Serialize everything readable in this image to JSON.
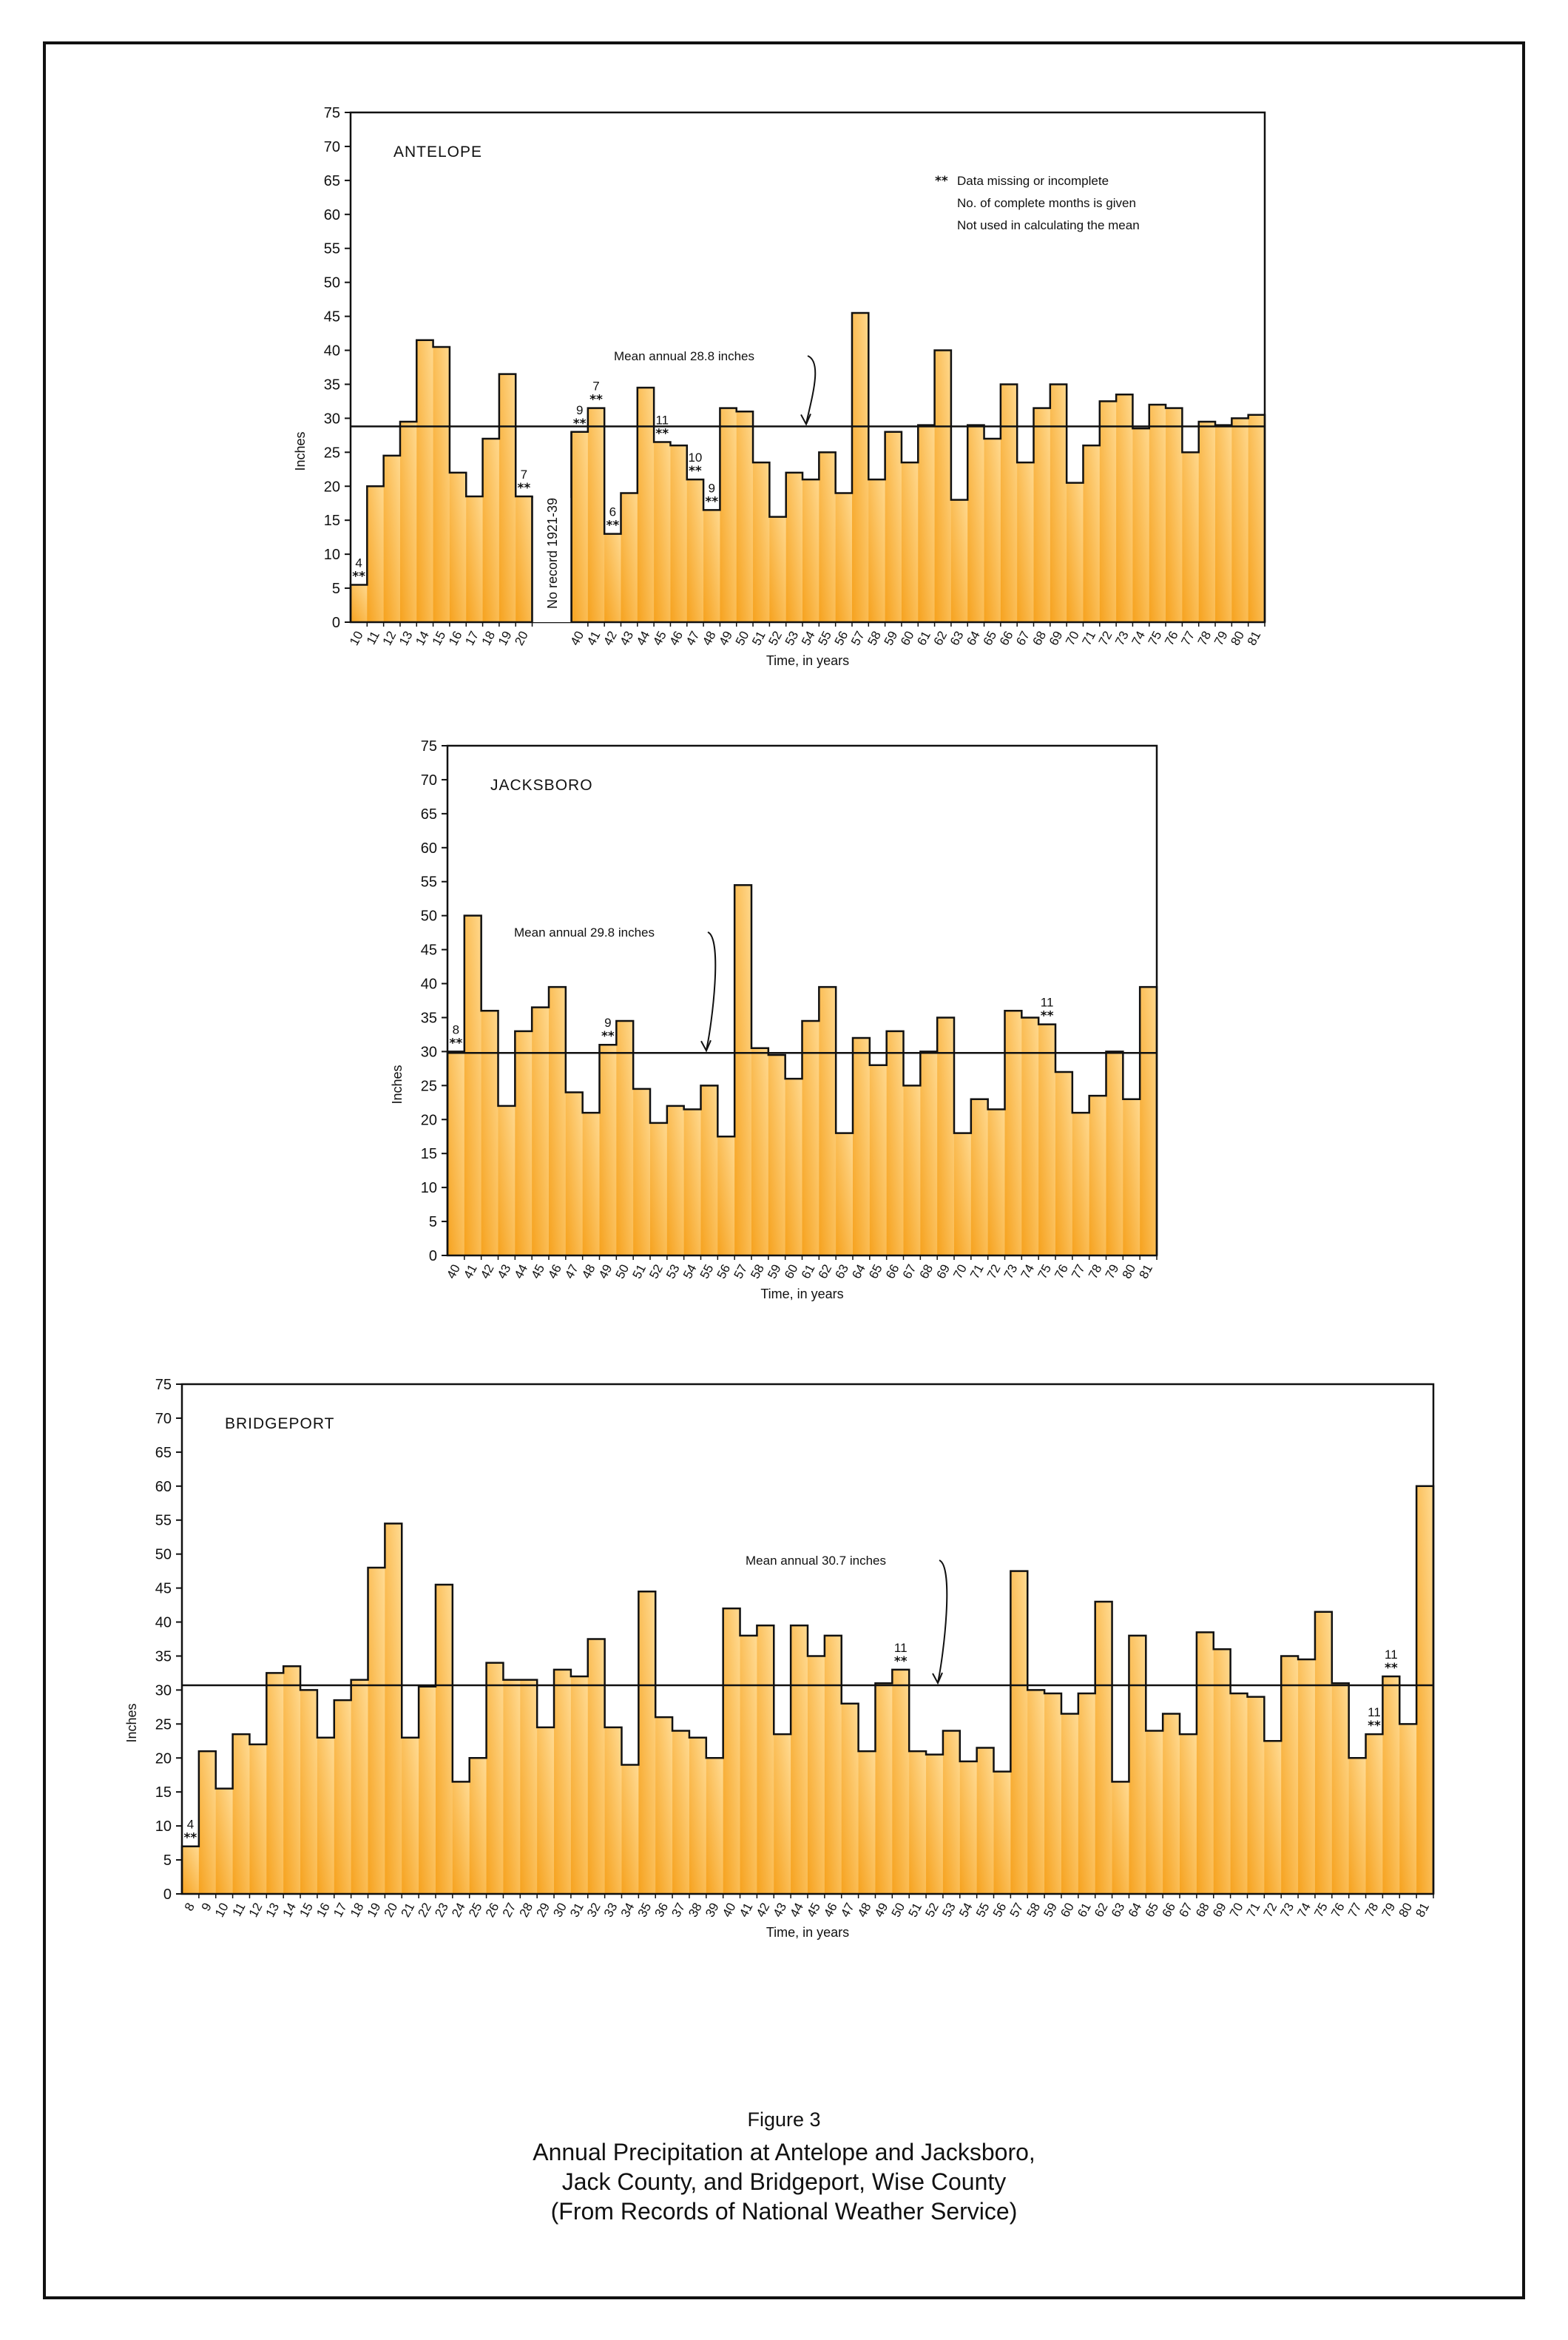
{
  "figure": {
    "label": "Figure 3",
    "title_lines": [
      "Annual Precipitation at Antelope and Jacksboro,",
      "Jack County, and Bridgeport, Wise County",
      "(From Records of National Weather Service)"
    ]
  },
  "colors": {
    "fill_light": "#ffd98f",
    "fill_dark": "#f6a21e",
    "line": "#111111"
  },
  "chart_data": [
    {
      "type": "bar",
      "title": "ANTELOPE",
      "xlabel": "Time, in years",
      "ylabel": "Inches",
      "ylim": [
        0,
        75
      ],
      "yticks": [
        0,
        5,
        10,
        15,
        20,
        25,
        30,
        35,
        40,
        45,
        50,
        55,
        60,
        65,
        70,
        75
      ],
      "mean": 28.8,
      "mean_label": "Mean annual 28.8 inches",
      "legend": {
        "symbol": "**",
        "lines": [
          "Data missing or incomplete",
          "No. of complete months is given",
          "Not used in calculating the mean"
        ]
      },
      "gap_label": "No record 1921-39",
      "categories": [
        "10",
        "11",
        "12",
        "13",
        "14",
        "15",
        "16",
        "17",
        "18",
        "19",
        "20",
        "40",
        "41",
        "42",
        "43",
        "44",
        "45",
        "46",
        "47",
        "48",
        "49",
        "50",
        "51",
        "52",
        "53",
        "54",
        "55",
        "56",
        "57",
        "58",
        "59",
        "60",
        "61",
        "62",
        "63",
        "64",
        "65",
        "66",
        "67",
        "68",
        "69",
        "70",
        "71",
        "72",
        "73",
        "74",
        "75",
        "76",
        "77",
        "78",
        "79",
        "80",
        "81"
      ],
      "values": [
        5.5,
        20,
        24.5,
        29.5,
        41.5,
        40.5,
        22,
        18.5,
        27,
        36.5,
        18.5,
        28,
        31.5,
        13,
        19,
        34.5,
        26.5,
        26,
        21,
        16.5,
        31.5,
        31,
        23.5,
        15.5,
        22,
        21,
        25,
        19,
        45.5,
        21,
        28,
        23.5,
        29,
        40,
        18,
        29,
        27,
        35,
        23.5,
        31.5,
        35,
        20.5,
        26,
        32.5,
        33.5,
        28.5,
        32,
        31.5,
        25,
        29.5,
        29,
        30,
        30.5
      ],
      "incomplete": [
        {
          "category": "10",
          "months": "4"
        },
        {
          "category": "20",
          "months": "7"
        },
        {
          "category": "40",
          "months": "9"
        },
        {
          "category": "41",
          "months": "7"
        },
        {
          "category": "42",
          "months": "6"
        },
        {
          "category": "45",
          "months": "11"
        },
        {
          "category": "47",
          "months": "10"
        },
        {
          "category": "48",
          "months": "9"
        }
      ]
    },
    {
      "type": "bar",
      "title": "JACKSBORO",
      "xlabel": "Time, in years",
      "ylabel": "Inches",
      "ylim": [
        0,
        75
      ],
      "yticks": [
        0,
        5,
        10,
        15,
        20,
        25,
        30,
        35,
        40,
        45,
        50,
        55,
        60,
        65,
        70,
        75
      ],
      "mean": 29.8,
      "mean_label": "Mean annual 29.8 inches",
      "categories": [
        "40",
        "41",
        "42",
        "43",
        "44",
        "45",
        "46",
        "47",
        "48",
        "49",
        "50",
        "51",
        "52",
        "53",
        "54",
        "55",
        "56",
        "57",
        "58",
        "59",
        "60",
        "61",
        "62",
        "63",
        "64",
        "65",
        "66",
        "67",
        "68",
        "69",
        "70",
        "71",
        "72",
        "73",
        "74",
        "75",
        "76",
        "77",
        "78",
        "79",
        "80",
        "81"
      ],
      "values": [
        30,
        50,
        36,
        22,
        33,
        36.5,
        39.5,
        24,
        21,
        31,
        34.5,
        24.5,
        19.5,
        22,
        21.5,
        25,
        17.5,
        54.5,
        30.5,
        29.5,
        26,
        34.5,
        39.5,
        18,
        32,
        28,
        33,
        25,
        30,
        35,
        18,
        23,
        21.5,
        36,
        35,
        34,
        27,
        21,
        23.5,
        30,
        23,
        39.5
      ],
      "incomplete": [
        {
          "category": "40",
          "months": "8"
        },
        {
          "category": "49",
          "months": "9"
        },
        {
          "category": "75",
          "months": "11"
        }
      ]
    },
    {
      "type": "bar",
      "title": "BRIDGEPORT",
      "xlabel": "Time, in years",
      "ylabel": "Inches",
      "ylim": [
        0,
        75
      ],
      "yticks": [
        0,
        5,
        10,
        15,
        20,
        25,
        30,
        35,
        40,
        45,
        50,
        55,
        60,
        65,
        70,
        75
      ],
      "mean": 30.7,
      "mean_label": "Mean annual 30.7 inches",
      "categories": [
        "8",
        "9",
        "10",
        "11",
        "12",
        "13",
        "14",
        "15",
        "16",
        "17",
        "18",
        "19",
        "20",
        "21",
        "22",
        "23",
        "24",
        "25",
        "26",
        "27",
        "28",
        "29",
        "30",
        "31",
        "32",
        "33",
        "34",
        "35",
        "36",
        "37",
        "38",
        "39",
        "40",
        "41",
        "42",
        "43",
        "44",
        "45",
        "46",
        "47",
        "48",
        "49",
        "50",
        "51",
        "52",
        "53",
        "54",
        "55",
        "56",
        "57",
        "58",
        "59",
        "60",
        "61",
        "62",
        "63",
        "64",
        "65",
        "66",
        "67",
        "68",
        "69",
        "70",
        "71",
        "72",
        "73",
        "74",
        "75",
        "76",
        "77",
        "78",
        "79",
        "80",
        "81"
      ],
      "values": [
        7,
        21,
        15.5,
        23.5,
        22,
        32.5,
        33.5,
        30,
        23,
        28.5,
        31.5,
        48,
        54.5,
        23,
        30.5,
        45.5,
        16.5,
        20,
        34,
        31.5,
        31.5,
        24.5,
        33,
        32,
        37.5,
        24.5,
        19,
        44.5,
        26,
        24,
        23,
        20,
        42,
        38,
        39.5,
        23.5,
        39.5,
        35,
        38,
        28,
        21,
        31,
        33,
        21,
        20.5,
        24,
        19.5,
        21.5,
        18,
        47.5,
        30,
        29.5,
        26.5,
        29.5,
        43,
        16.5,
        38,
        24,
        26.5,
        23.5,
        38.5,
        36,
        29.5,
        29,
        22.5,
        35,
        34.5,
        41.5,
        31,
        20,
        23.5,
        32,
        25,
        60
      ],
      "incomplete": [
        {
          "category": "8",
          "months": "4"
        },
        {
          "category": "50",
          "months": "11"
        },
        {
          "category": "78",
          "months": "11"
        },
        {
          "category": "79",
          "months": "11"
        }
      ]
    }
  ]
}
